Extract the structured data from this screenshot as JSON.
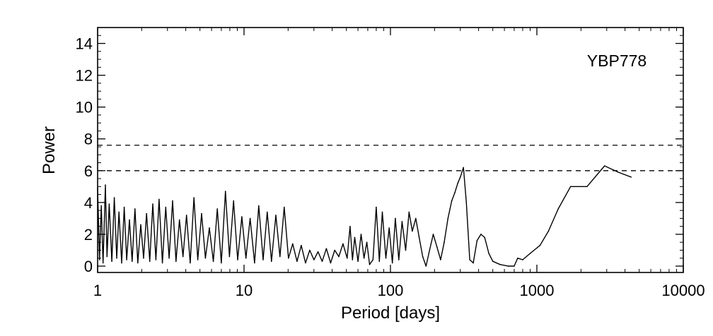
{
  "chart_data": {
    "type": "line",
    "title": "",
    "annotation": "YBP778",
    "xlabel": "Period [days]",
    "ylabel": "Power",
    "xscale": "log",
    "xlim": [
      1,
      10000
    ],
    "ylim": [
      -0.4,
      15
    ],
    "xticks": [
      1,
      10,
      100,
      1000,
      10000
    ],
    "xtick_labels": [
      "1",
      "10",
      "100",
      "1000",
      "10000"
    ],
    "yticks": [
      0,
      2,
      4,
      6,
      8,
      10,
      12,
      14
    ],
    "ytick_labels": [
      "0",
      "2",
      "4",
      "6",
      "8",
      "10",
      "12",
      "14"
    ],
    "grid": false,
    "threshold_lines": [
      {
        "y": 7.6,
        "style": "dashed"
      },
      {
        "y": 6.0,
        "style": "dashed"
      }
    ],
    "series": [
      {
        "style": "solid",
        "x": [
          1.0,
          1.03,
          1.06,
          1.09,
          1.13,
          1.16,
          1.2,
          1.25,
          1.3,
          1.35,
          1.4,
          1.46,
          1.52,
          1.58,
          1.65,
          1.72,
          1.8,
          1.88,
          1.97,
          2.06,
          2.16,
          2.27,
          2.38,
          2.5,
          2.63,
          2.77,
          2.92,
          3.08,
          3.25,
          3.43,
          3.62,
          3.83,
          4.05,
          4.29,
          4.55,
          4.83,
          5.13,
          5.45,
          5.8,
          6.17,
          6.57,
          7.0,
          7.46,
          7.95,
          8.48,
          9.05,
          9.66,
          10.3,
          11.0,
          11.8,
          12.6,
          13.5,
          14.4,
          15.4,
          16.5,
          17.6,
          18.8,
          20.1,
          21.5,
          23.0,
          24.6,
          26.3,
          28.1,
          30.0,
          32.0,
          34.2,
          36.5,
          39.0,
          41.6,
          44.4,
          47.4,
          50.6,
          53.0,
          55.0,
          57.0,
          60.0,
          63.0,
          66.0,
          69.0,
          72.0,
          76.0,
          80.0,
          84.0,
          88.0,
          93.0,
          98.0,
          103.0,
          108.0,
          114.0,
          120.0,
          127.0,
          134.0,
          141.0,
          149.0,
          157.0,
          166.0,
          175.0,
          185.0,
          196.0,
          208.0,
          220.0,
          233.0,
          247.0,
          262.0,
          275.0,
          288.0,
          300.0,
          315.0,
          330.0,
          348.0,
          368.0,
          390.0,
          415.0,
          440.0,
          470.0,
          500.0,
          560.0,
          640.0,
          700.0,
          740.0,
          800.0,
          900.0,
          1050.0,
          1200.0,
          1400.0,
          1700.0,
          2200.0,
          2900.0,
          3600.0,
          4400.0
        ],
        "y": [
          4.9,
          0.4,
          3.8,
          0.2,
          5.1,
          0.6,
          3.9,
          0.3,
          4.3,
          0.5,
          3.4,
          0.2,
          3.7,
          0.4,
          2.9,
          0.3,
          3.6,
          0.2,
          2.6,
          0.5,
          3.3,
          0.3,
          3.9,
          0.4,
          4.2,
          0.2,
          3.7,
          0.5,
          4.1,
          0.3,
          2.9,
          0.6,
          3.2,
          0.2,
          4.3,
          0.4,
          3.3,
          0.5,
          2.4,
          0.3,
          3.6,
          0.2,
          4.7,
          0.6,
          4.1,
          0.4,
          3.1,
          0.5,
          3.0,
          0.2,
          3.8,
          0.4,
          3.4,
          0.3,
          3.2,
          0.6,
          3.7,
          0.5,
          1.4,
          0.3,
          1.3,
          0.2,
          1.0,
          0.4,
          0.9,
          0.3,
          1.1,
          0.2,
          1.0,
          0.6,
          1.4,
          0.5,
          2.5,
          0.4,
          1.8,
          0.3,
          2.0,
          0.5,
          1.5,
          0.1,
          0.4,
          3.7,
          0.3,
          3.4,
          0.5,
          2.4,
          0.2,
          3.0,
          0.4,
          2.8,
          1.0,
          3.4,
          2.2,
          3.0,
          1.8,
          0.6,
          0.0,
          1.0,
          2.0,
          1.2,
          0.4,
          1.5,
          3.0,
          4.1,
          4.6,
          5.2,
          5.6,
          6.2,
          4.0,
          0.4,
          0.2,
          1.6,
          2.0,
          1.8,
          0.8,
          0.3,
          0.1,
          0.0,
          0.0,
          0.5,
          0.4,
          0.8,
          1.3,
          2.2,
          3.6,
          5.0,
          5.0,
          6.3,
          5.9,
          5.6
        ]
      }
    ]
  }
}
